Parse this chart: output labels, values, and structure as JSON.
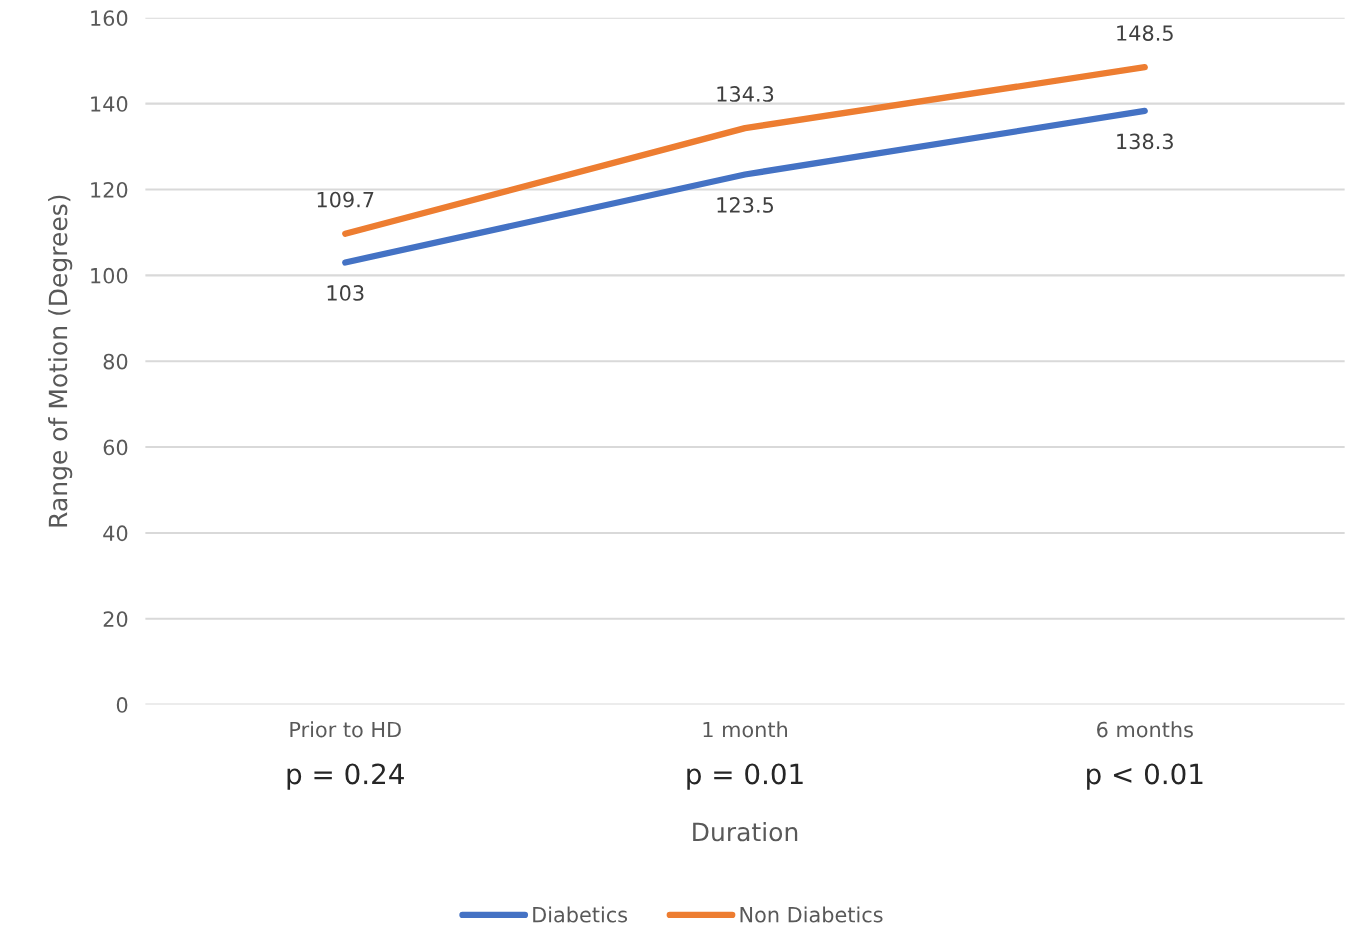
{
  "chart_data": {
    "type": "line",
    "xlabel": "Duration",
    "ylabel": "Range of Motion (Degrees)",
    "categories": [
      "Prior to HD",
      "1 month",
      "6 months"
    ],
    "series": [
      {
        "name": "Diabetics",
        "color": "#4472c4",
        "values": [
          103,
          123.5,
          138.3
        ]
      },
      {
        "name": "Non Diabetics",
        "color": "#ed7d31",
        "values": [
          109.7,
          134.3,
          148.5
        ]
      }
    ],
    "ylim": [
      0,
      160
    ],
    "yticks": [
      0,
      20,
      40,
      60,
      80,
      100,
      120,
      140,
      160
    ],
    "grid": "y",
    "legend": "bottom",
    "data_labels": true,
    "marker": "none",
    "line_style": "solid",
    "annotations": [
      "p = 0.24",
      "p = 0.01",
      "p < 0.01"
    ]
  }
}
